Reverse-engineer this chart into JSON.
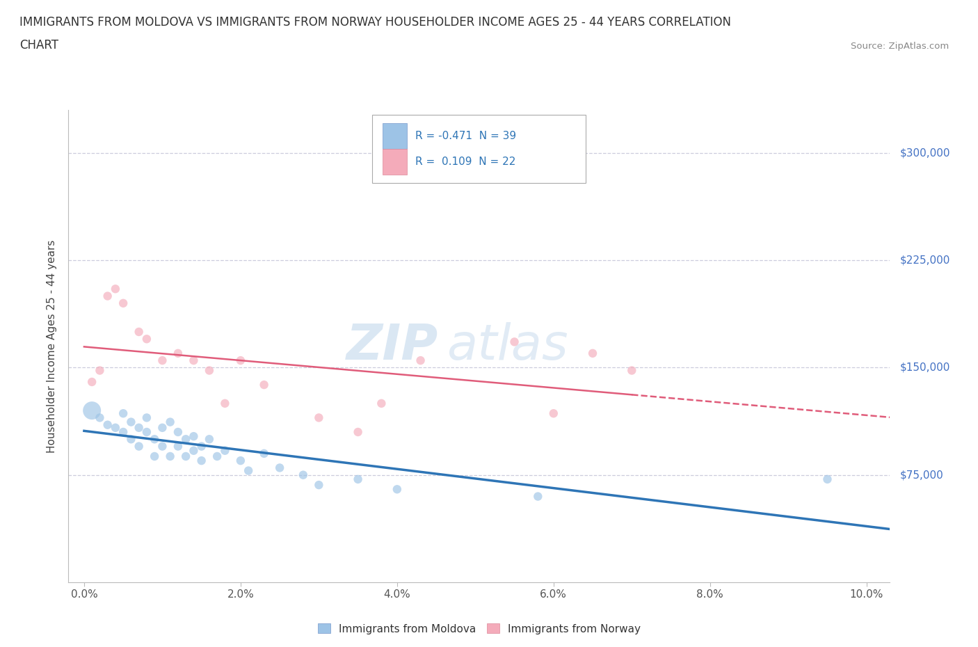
{
  "title_line1": "IMMIGRANTS FROM MOLDOVA VS IMMIGRANTS FROM NORWAY HOUSEHOLDER INCOME AGES 25 - 44 YEARS CORRELATION",
  "title_line2": "CHART",
  "source": "Source: ZipAtlas.com",
  "ylabel": "Householder Income Ages 25 - 44 years",
  "xlabel_ticks": [
    "0.0%",
    "2.0%",
    "4.0%",
    "6.0%",
    "8.0%",
    "10.0%"
  ],
  "xlabel_vals": [
    0.0,
    0.02,
    0.04,
    0.06,
    0.08,
    0.1
  ],
  "yticks": [
    0,
    75000,
    150000,
    225000,
    300000
  ],
  "ytick_labels": [
    "",
    "$75,000",
    "$150,000",
    "$225,000",
    "$300,000"
  ],
  "ylim": [
    0,
    330000
  ],
  "xlim": [
    -0.002,
    0.103
  ],
  "moldova_color": "#9DC3E6",
  "norway_color": "#F4ABBA",
  "moldova_line_color": "#2E75B6",
  "norway_line_color": "#E05C7A",
  "moldova_R": -0.471,
  "moldova_N": 39,
  "norway_R": 0.109,
  "norway_N": 22,
  "watermark": "ZIPatlas",
  "moldova_x": [
    0.001,
    0.002,
    0.003,
    0.004,
    0.005,
    0.005,
    0.006,
    0.006,
    0.007,
    0.007,
    0.008,
    0.008,
    0.009,
    0.009,
    0.01,
    0.01,
    0.011,
    0.011,
    0.012,
    0.012,
    0.013,
    0.013,
    0.014,
    0.014,
    0.015,
    0.015,
    0.016,
    0.017,
    0.018,
    0.02,
    0.021,
    0.023,
    0.025,
    0.028,
    0.03,
    0.035,
    0.04,
    0.058,
    0.095
  ],
  "moldova_y": [
    120000,
    115000,
    110000,
    108000,
    105000,
    118000,
    100000,
    112000,
    108000,
    95000,
    105000,
    115000,
    100000,
    88000,
    108000,
    95000,
    112000,
    88000,
    105000,
    95000,
    88000,
    100000,
    92000,
    102000,
    85000,
    95000,
    100000,
    88000,
    92000,
    85000,
    78000,
    90000,
    80000,
    75000,
    68000,
    72000,
    65000,
    60000,
    72000
  ],
  "moldova_sizes": [
    80,
    80,
    80,
    80,
    80,
    80,
    80,
    80,
    80,
    80,
    80,
    80,
    80,
    80,
    80,
    80,
    80,
    80,
    80,
    80,
    80,
    80,
    80,
    80,
    80,
    80,
    80,
    80,
    80,
    80,
    80,
    80,
    80,
    80,
    80,
    80,
    80,
    80,
    80
  ],
  "moldova_large_idx": 0,
  "moldova_large_size": 350,
  "norway_x": [
    0.001,
    0.002,
    0.003,
    0.004,
    0.005,
    0.007,
    0.008,
    0.01,
    0.012,
    0.014,
    0.016,
    0.018,
    0.02,
    0.023,
    0.03,
    0.035,
    0.038,
    0.043,
    0.055,
    0.06,
    0.065,
    0.07
  ],
  "norway_y": [
    140000,
    148000,
    200000,
    205000,
    195000,
    175000,
    170000,
    155000,
    160000,
    155000,
    148000,
    125000,
    155000,
    138000,
    115000,
    105000,
    125000,
    155000,
    168000,
    118000,
    160000,
    148000
  ],
  "norway_sizes": [
    80,
    80,
    80,
    80,
    80,
    80,
    80,
    80,
    80,
    80,
    80,
    80,
    80,
    80,
    80,
    80,
    80,
    80,
    80,
    80,
    80,
    80
  ],
  "grid_color": "#CCCCDD",
  "spine_color": "#BBBBBB",
  "tick_color": "#555555",
  "yaxis_label_color": "#4472C4"
}
